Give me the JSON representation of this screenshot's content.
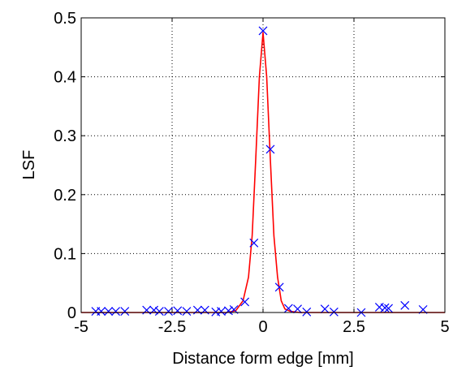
{
  "chart_data": {
    "type": "scatter",
    "title": "",
    "xlabel": "Distance form edge [mm]",
    "ylabel": "LSF",
    "xlim": [
      -5,
      5
    ],
    "ylim": [
      0,
      0.5
    ],
    "xticks": [
      -5,
      -2.5,
      0,
      2.5,
      5
    ],
    "xtick_labels": [
      "-5",
      "-2.5",
      "0",
      "2.5",
      "5"
    ],
    "yticks": [
      0,
      0.1,
      0.2,
      0.3,
      0.4,
      0.5
    ],
    "ytick_labels": [
      "0",
      "0.1",
      "0.2",
      "0.3",
      "0.4",
      "0.5"
    ],
    "grid": "dotted",
    "series": [
      {
        "kind": "line",
        "color": "#ff0000",
        "x": [
          -5,
          -1.0,
          -0.75,
          -0.55,
          -0.4,
          -0.3,
          -0.2,
          -0.1,
          0,
          0.1,
          0.2,
          0.3,
          0.4,
          0.5,
          0.6,
          0.75,
          1.0,
          5
        ],
        "y": [
          0,
          0,
          0.003,
          0.02,
          0.06,
          0.13,
          0.26,
          0.4,
          0.475,
          0.4,
          0.26,
          0.13,
          0.06,
          0.02,
          0.006,
          0.002,
          0,
          0
        ]
      },
      {
        "kind": "markers",
        "marker": "x",
        "color": "#0000ff",
        "x": [
          -4.6,
          -4.45,
          -4.25,
          -4.05,
          -3.8,
          -3.2,
          -3.0,
          -2.85,
          -2.6,
          -2.35,
          -2.1,
          -1.8,
          -1.6,
          -1.3,
          -1.15,
          -0.95,
          -0.8,
          -0.5,
          -0.25,
          0.0,
          0.2,
          0.45,
          0.7,
          0.95,
          1.2,
          1.7,
          1.95,
          2.7,
          3.2,
          3.35,
          3.45,
          3.9,
          4.4
        ],
        "y": [
          0.002,
          0.002,
          0.002,
          0.002,
          0.002,
          0.004,
          0.004,
          0.002,
          0.002,
          0.003,
          0.002,
          0.004,
          0.004,
          0.001,
          0.002,
          0.003,
          0.005,
          0.018,
          0.118,
          0.478,
          0.277,
          0.043,
          0.007,
          0.006,
          0.001,
          0.006,
          0.001,
          0.0,
          0.009,
          0.008,
          0.007,
          0.012,
          0.005
        ]
      }
    ]
  }
}
